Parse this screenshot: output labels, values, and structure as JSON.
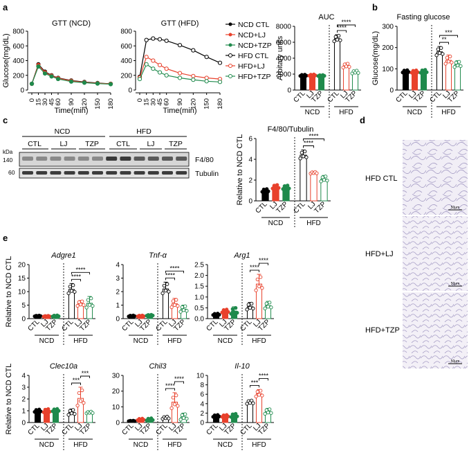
{
  "colors": {
    "ctl": "#000000",
    "lj": "#e8412c",
    "tzp": "#1f8a4c",
    "divider": "#000000"
  },
  "panels": {
    "a": {
      "letter": "a"
    },
    "b": {
      "letter": "b"
    },
    "c": {
      "letter": "c"
    },
    "d": {
      "letter": "d"
    },
    "e": {
      "letter": "e"
    }
  },
  "legend": [
    "NCD CTL",
    "NCD+LJ",
    "NCD+TZP",
    "HFD CTL",
    "HFD+LJ",
    "HFD+TZP"
  ],
  "groups": {
    "ncd": "NCD",
    "hfd": "HFD"
  },
  "bar_cats": [
    "CTL",
    "LJ",
    "TZP"
  ],
  "blot": {
    "kda_label": "kDa",
    "groups": [
      "NCD",
      "HFD"
    ],
    "lanes": [
      "CTL",
      "LJ",
      "TZP",
      "CTL",
      "LJ",
      "TZP"
    ],
    "markers": [
      "140",
      "60"
    ],
    "bands": [
      "F4/80",
      "Tubulin"
    ]
  },
  "histology": {
    "labels": [
      "HFD CTL",
      "HFD+LJ",
      "HFD+TZP"
    ],
    "scale": "50μm"
  },
  "chart_data": [
    {
      "id": "gtt_ncd",
      "type": "line",
      "title": "GTT (NCD)",
      "xlabel": "Time(min)",
      "ylabel": "Glucose(mg/dL)",
      "x": [
        0,
        15,
        30,
        45,
        60,
        90,
        120,
        150,
        180
      ],
      "xlim": [
        0,
        180
      ],
      "ylim": [
        0,
        800
      ],
      "yticks": [
        0,
        200,
        400,
        600,
        800
      ],
      "series": [
        {
          "key": "ctl",
          "values": [
            85,
            350,
            250,
            200,
            165,
            130,
            110,
            95,
            85
          ]
        },
        {
          "key": "lj",
          "values": [
            85,
            340,
            240,
            195,
            160,
            125,
            105,
            92,
            85
          ]
        },
        {
          "key": "tzp",
          "values": [
            85,
            320,
            225,
            185,
            150,
            115,
            100,
            88,
            80
          ]
        }
      ]
    },
    {
      "id": "gtt_hfd",
      "type": "line",
      "title": "GTT (HFD)",
      "xlabel": "Time(min)",
      "x": [
        0,
        15,
        30,
        45,
        60,
        90,
        120,
        150,
        180
      ],
      "xlim": [
        0,
        180
      ],
      "ylim": [
        0,
        800
      ],
      "yticks": [
        0,
        200,
        400,
        600,
        800
      ],
      "series": [
        {
          "key": "ctl",
          "values": [
            180,
            680,
            700,
            690,
            670,
            610,
            540,
            450,
            370
          ]
        },
        {
          "key": "lj",
          "values": [
            170,
            450,
            400,
            340,
            290,
            230,
            190,
            165,
            150
          ]
        },
        {
          "key": "tzp",
          "values": [
            150,
            350,
            290,
            240,
            200,
            165,
            140,
            120,
            110
          ]
        }
      ]
    },
    {
      "id": "auc",
      "type": "bar",
      "title": "AUC",
      "ylabel": "Arbitary units",
      "ylim": [
        0,
        8000
      ],
      "yticks": [
        0,
        2000,
        4000,
        6000,
        8000
      ],
      "values": [
        1850,
        1880,
        1820,
        6450,
        3050,
        2250
      ],
      "err": [
        120,
        120,
        100,
        500,
        350,
        250
      ],
      "sig": [
        {
          "from": 3,
          "to": 4,
          "label": "****"
        },
        {
          "from": 3,
          "to": 5,
          "label": "****"
        }
      ]
    },
    {
      "id": "fasting",
      "type": "bar",
      "title": "Fasting glucose",
      "ylabel": "Glucose(mg/dL)",
      "ylim": [
        0,
        300
      ],
      "yticks": [
        0,
        100,
        200,
        300
      ],
      "values": [
        88,
        87,
        88,
        180,
        140,
        120
      ],
      "err": [
        8,
        8,
        10,
        25,
        25,
        18
      ],
      "sig": [
        {
          "from": 3,
          "to": 4,
          "label": "**"
        },
        {
          "from": 3,
          "to": 5,
          "label": "***"
        }
      ]
    },
    {
      "id": "f480",
      "type": "bar",
      "title": "F4/80/Tubulin",
      "ylabel": "Relative to NCD CTL",
      "ylim": [
        0,
        6
      ],
      "yticks": [
        0,
        2,
        4,
        6
      ],
      "values": [
        1.0,
        1.35,
        1.3,
        4.4,
        2.7,
        2.1
      ],
      "err": [
        0.2,
        0.25,
        0.25,
        0.5,
        0.1,
        0.35
      ],
      "sig": [
        {
          "from": 3,
          "to": 4,
          "label": "****"
        },
        {
          "from": 3,
          "to": 5,
          "label": "****"
        }
      ]
    },
    {
      "id": "adgre1",
      "type": "bar",
      "title": "Adgre1",
      "ylabel": "Relative to NCD CTL",
      "ylim": [
        0,
        20
      ],
      "yticks": [
        0,
        5,
        10,
        15,
        20
      ],
      "values": [
        1.0,
        0.9,
        1.0,
        10.8,
        5.5,
        5.7
      ],
      "err": [
        0.2,
        0.2,
        0.3,
        2.2,
        1.2,
        2.5
      ],
      "sig": [
        {
          "from": 3,
          "to": 4,
          "label": "****"
        },
        {
          "from": 3,
          "to": 5,
          "label": "****"
        }
      ]
    },
    {
      "id": "tnfa",
      "type": "bar",
      "title": "Tnf-α",
      "ylim": [
        0,
        4
      ],
      "yticks": [
        0,
        1,
        2,
        3,
        4
      ],
      "values": [
        0.2,
        0.2,
        0.25,
        2.2,
        1.1,
        0.7
      ],
      "err": [
        0.05,
        0.05,
        0.05,
        0.5,
        0.4,
        0.3
      ],
      "sig": [
        {
          "from": 3,
          "to": 4,
          "label": "****"
        },
        {
          "from": 3,
          "to": 5,
          "label": "****"
        }
      ]
    },
    {
      "id": "arg1",
      "type": "bar",
      "title": "Arg1",
      "ylim": [
        0,
        2.5
      ],
      "yticks": [
        0,
        0.5,
        1.0,
        1.5,
        2.0,
        2.5
      ],
      "values": [
        0.2,
        0.35,
        0.35,
        0.55,
        1.6,
        0.6
      ],
      "err": [
        0.05,
        0.1,
        0.2,
        0.2,
        0.45,
        0.2
      ],
      "sig": [
        {
          "from": 3,
          "to": 4,
          "label": "****"
        },
        {
          "from": 4,
          "to": 5,
          "label": "****"
        }
      ]
    },
    {
      "id": "clec10a",
      "type": "bar",
      "title": "Clec10a",
      "ylabel": "Relative to NCD CTL",
      "ylim": [
        0,
        4
      ],
      "yticks": [
        0,
        1,
        2,
        3,
        4
      ],
      "values": [
        1.0,
        1.0,
        1.05,
        0.85,
        2.05,
        0.85
      ],
      "err": [
        0.15,
        0.2,
        0.15,
        0.3,
        0.95,
        0.1
      ],
      "sig": [
        {
          "from": 3,
          "to": 4,
          "label": "***"
        },
        {
          "from": 4,
          "to": 5,
          "label": "***"
        }
      ]
    },
    {
      "id": "chil3",
      "type": "bar",
      "title": "Chil3",
      "ylim": [
        0,
        30
      ],
      "yticks": [
        0,
        10,
        20,
        30
      ],
      "values": [
        1.0,
        2.0,
        2.0,
        3.0,
        13.0,
        3.5
      ],
      "err": [
        0.3,
        0.7,
        1.0,
        1.0,
        6.0,
        2.5
      ],
      "sig": [
        {
          "from": 3,
          "to": 4,
          "label": "****"
        },
        {
          "from": 4,
          "to": 5,
          "label": "****"
        }
      ]
    },
    {
      "id": "il10",
      "type": "bar",
      "title": "Il-10",
      "ylim": [
        0,
        10
      ],
      "yticks": [
        0,
        2,
        4,
        6,
        8,
        10
      ],
      "values": [
        1.4,
        1.4,
        1.5,
        4.3,
        6.1,
        2.3
      ],
      "err": [
        0.3,
        0.3,
        0.5,
        0.5,
        0.9,
        0.7
      ],
      "sig": [
        {
          "from": 3,
          "to": 4,
          "label": "***"
        },
        {
          "from": 4,
          "to": 5,
          "label": "****"
        }
      ]
    }
  ]
}
